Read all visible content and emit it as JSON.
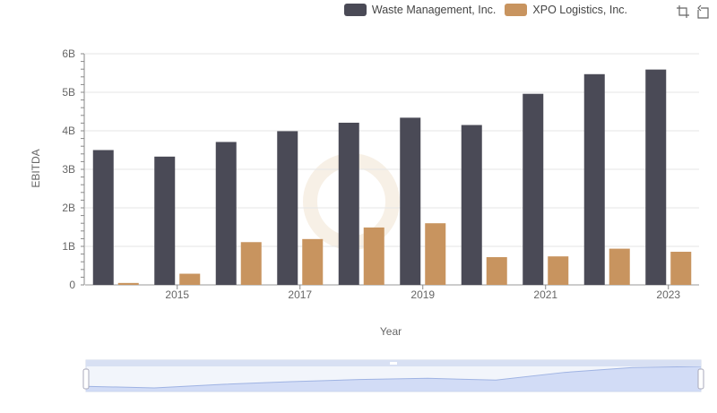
{
  "legend": [
    {
      "name": "Waste Management, Inc.",
      "color": "#4a4a56"
    },
    {
      "name": "XPO Logistics, Inc.",
      "color": "#c8945f"
    }
  ],
  "toolbox": {
    "zoom_icon": "data-zoom-icon",
    "reset_icon": "zoom-reset-icon"
  },
  "chart_data": {
    "type": "bar",
    "categories": [
      "2014",
      "2015",
      "2016",
      "2017",
      "2018",
      "2019",
      "2020",
      "2021",
      "2022",
      "2023"
    ],
    "x_tick_labels": [
      "2015",
      "2017",
      "2019",
      "2021",
      "2023"
    ],
    "y_tick_labels": [
      "0",
      "1B",
      "2B",
      "3B",
      "4B",
      "5B",
      "6B"
    ],
    "xlabel": "Year",
    "ylabel": "EBITDA",
    "ylim": [
      0,
      6000000000
    ],
    "grid": true,
    "legend_position": "top-right",
    "series": [
      {
        "name": "Waste Management, Inc.",
        "color": "#4a4a56",
        "values": [
          3500000000,
          3330000000,
          3710000000,
          3990000000,
          4210000000,
          4340000000,
          4150000000,
          4960000000,
          5470000000,
          5590000000
        ]
      },
      {
        "name": "XPO Logistics, Inc.",
        "color": "#c8945f",
        "values": [
          50000000,
          290000000,
          1110000000,
          1190000000,
          1490000000,
          1600000000,
          720000000,
          740000000,
          940000000,
          860000000
        ]
      }
    ]
  }
}
